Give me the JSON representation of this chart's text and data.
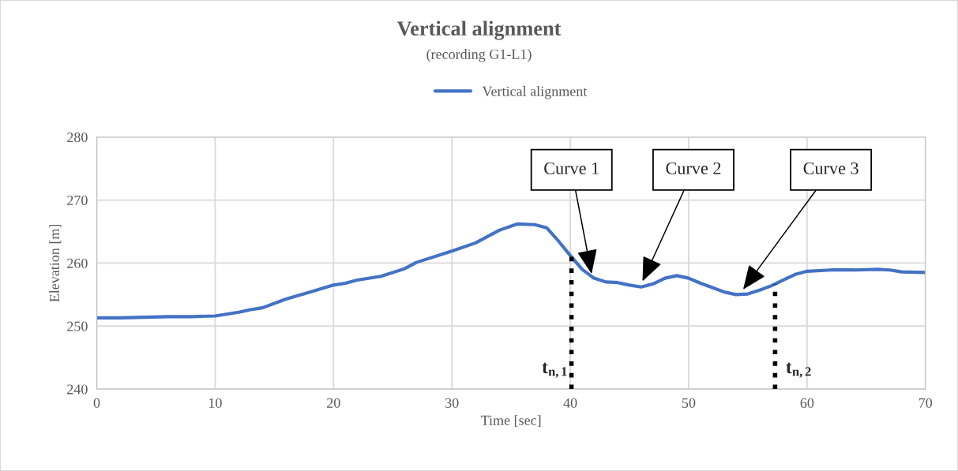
{
  "chart_data": {
    "type": "line",
    "title": "Vertical alignment",
    "subtitle": "(recording G1-L1)",
    "xlabel": "Time [sec]",
    "ylabel": "Elevation [m]",
    "x": [
      0,
      2,
      4,
      6,
      8,
      10,
      12,
      13,
      14,
      16,
      18,
      20,
      21,
      22,
      24,
      26,
      27,
      30,
      32,
      34,
      35.5,
      37,
      38,
      39,
      40,
      41,
      42,
      43,
      44,
      45,
      46,
      47,
      48,
      49,
      50,
      51,
      52,
      53,
      54,
      55,
      56,
      57,
      58,
      59,
      60,
      62,
      64,
      66,
      67,
      68,
      70
    ],
    "series": [
      {
        "name": "Vertical alignment",
        "color": "#4472c4",
        "values": [
          251.3,
          251.3,
          251.4,
          251.5,
          251.5,
          251.6,
          252.2,
          252.6,
          252.9,
          254.3,
          255.4,
          256.5,
          256.8,
          257.3,
          257.9,
          259.1,
          260.1,
          261.9,
          263.2,
          265.2,
          266.2,
          266.1,
          265.6,
          263.5,
          261.2,
          259.0,
          257.6,
          257.0,
          256.9,
          256.5,
          256.2,
          256.7,
          257.6,
          258.0,
          257.6,
          256.8,
          256.1,
          255.4,
          255.0,
          255.1,
          255.7,
          256.4,
          257.3,
          258.2,
          258.7,
          258.9,
          258.9,
          259.0,
          258.9,
          258.6,
          258.5
        ]
      }
    ],
    "xlim": [
      0,
      70
    ],
    "xticks": [
      0,
      10,
      20,
      30,
      40,
      50,
      60,
      70
    ],
    "ylim": [
      240,
      280
    ],
    "yticks": [
      240,
      250,
      260,
      270,
      280
    ],
    "grid": true,
    "legend": "top",
    "marker": "none",
    "line_style": "solid",
    "ref_lines": [
      {
        "axis": "x",
        "value": 40.1,
        "label": "t$_{n,1}$",
        "color": "#000000",
        "line_style": "dotted"
      },
      {
        "axis": "x",
        "value": 57.3,
        "label": "t$_{n,2}$",
        "color": "#000000",
        "line_style": "dotted"
      }
    ],
    "annotations": [
      {
        "text": "Curve 1",
        "x": 41.8,
        "y": 258.3
      },
      {
        "text": "Curve 2",
        "x": 46.1,
        "y": 257.1
      },
      {
        "text": "Curve 3",
        "x": 54.6,
        "y": 255.8
      }
    ]
  }
}
